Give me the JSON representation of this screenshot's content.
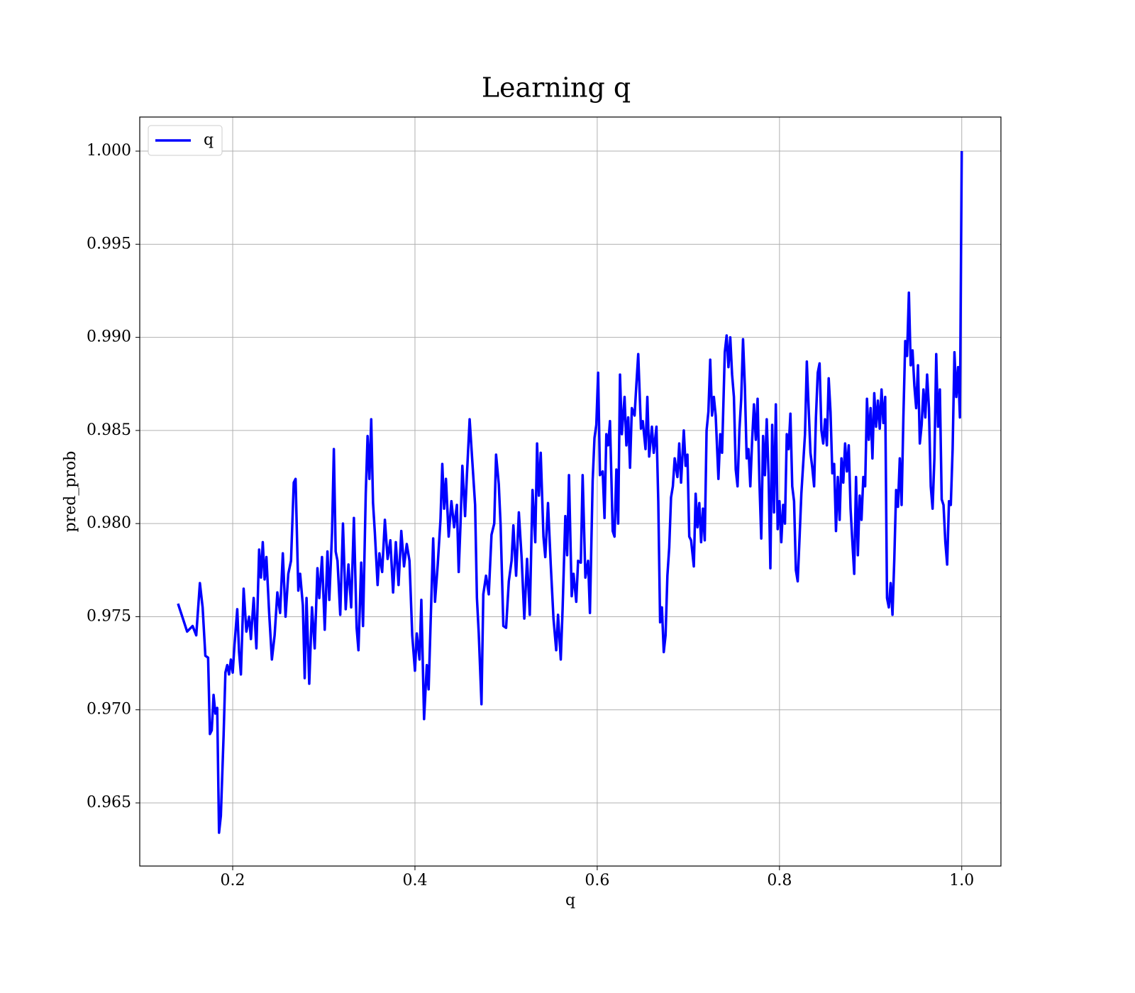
{
  "chart_data": {
    "type": "line",
    "title": "Learning q",
    "xlabel": "q",
    "ylabel": "pred_prob",
    "xlim": [
      0.098,
      1.043
    ],
    "ylim": [
      0.96161,
      1.00183
    ],
    "xticks": [
      0.2,
      0.4,
      0.6,
      0.8,
      {
        "value": 1.0,
        "label": "1.0"
      }
    ],
    "yticks": [
      0.965,
      {
        "value": 0.97,
        "label": "0.970"
      },
      0.975,
      {
        "value": 0.98,
        "label": "0.980"
      },
      0.985,
      {
        "value": 0.99,
        "label": "0.990"
      },
      0.995,
      {
        "value": 1.0,
        "label": "1.000"
      }
    ],
    "grid": true,
    "legend": "upper left",
    "x": [
      0.14,
      0.15,
      0.156,
      0.16,
      0.164,
      0.167,
      0.17,
      0.173,
      0.175,
      0.177,
      0.179,
      0.181,
      0.183,
      0.185,
      0.187,
      0.19,
      0.192,
      0.194,
      0.196,
      0.198,
      0.2,
      0.202,
      0.205,
      0.207,
      0.209,
      0.212,
      0.215,
      0.218,
      0.22,
      0.223,
      0.226,
      0.229,
      0.231,
      0.233,
      0.235,
      0.237,
      0.24,
      0.243,
      0.246,
      0.249,
      0.252,
      0.255,
      0.258,
      0.261,
      0.264,
      0.267,
      0.269,
      0.272,
      0.274,
      0.277,
      0.279,
      0.281,
      0.284,
      0.287,
      0.29,
      0.293,
      0.295,
      0.298,
      0.301,
      0.304,
      0.306,
      0.309,
      0.311,
      0.313,
      0.315,
      0.318,
      0.321,
      0.324,
      0.327,
      0.33,
      0.333,
      0.336,
      0.338,
      0.341,
      0.343,
      0.346,
      0.348,
      0.35,
      0.352,
      0.354,
      0.356,
      0.359,
      0.361,
      0.364,
      0.367,
      0.37,
      0.373,
      0.376,
      0.379,
      0.382,
      0.385,
      0.388,
      0.391,
      0.394,
      0.397,
      0.4,
      0.402,
      0.405,
      0.407,
      0.41,
      0.413,
      0.415,
      0.418,
      0.42,
      0.422,
      0.425,
      0.428,
      0.43,
      0.432,
      0.434,
      0.437,
      0.44,
      0.443,
      0.446,
      0.448,
      0.45,
      0.452,
      0.455,
      0.457,
      0.46,
      0.463,
      0.466,
      0.468,
      0.47,
      0.473,
      0.475,
      0.478,
      0.481,
      0.484,
      0.487,
      0.489,
      0.492,
      0.494,
      0.497,
      0.5,
      0.503,
      0.506,
      0.508,
      0.511,
      0.514,
      0.517,
      0.52,
      0.523,
      0.526,
      0.529,
      0.532,
      0.534,
      0.536,
      0.538,
      0.541,
      0.543,
      0.546,
      0.549,
      0.552,
      0.555,
      0.557,
      0.56,
      0.562,
      0.565,
      0.567,
      0.569,
      0.572,
      0.574,
      0.577,
      0.579,
      0.582,
      0.584,
      0.587,
      0.59,
      0.592,
      0.595,
      0.597,
      0.599,
      0.601,
      0.603,
      0.606,
      0.608,
      0.61,
      0.612,
      0.614,
      0.617,
      0.619,
      0.621,
      0.623,
      0.625,
      0.627,
      0.63,
      0.632,
      0.634,
      0.636,
      0.638,
      0.641,
      0.643,
      0.645,
      0.648,
      0.65,
      0.653,
      0.655,
      0.657,
      0.66,
      0.662,
      0.665,
      0.667,
      0.669,
      0.671,
      0.673,
      0.675,
      0.677,
      0.679,
      0.681,
      0.683,
      0.685,
      0.688,
      0.69,
      0.692,
      0.695,
      0.697,
      0.699,
      0.701,
      0.703,
      0.706,
      0.708,
      0.71,
      0.712,
      0.714,
      0.716,
      0.718,
      0.72,
      0.722,
      0.724,
      0.726,
      0.728,
      0.73,
      0.733,
      0.735,
      0.737,
      0.74,
      0.742,
      0.744,
      0.746,
      0.748,
      0.75,
      0.752,
      0.754,
      0.756,
      0.758,
      0.76,
      0.762,
      0.764,
      0.766,
      0.768,
      0.77,
      0.772,
      0.774,
      0.776,
      0.778,
      0.78,
      0.782,
      0.784,
      0.786,
      0.788,
      0.79,
      0.792,
      0.794,
      0.796,
      0.798,
      0.8,
      0.802,
      0.804,
      0.806,
      0.808,
      0.81,
      0.812,
      0.814,
      0.816,
      0.818,
      0.82,
      0.822,
      0.824,
      0.826,
      0.828,
      0.83,
      0.832,
      0.834,
      0.836,
      0.838,
      0.84,
      0.842,
      0.844,
      0.846,
      0.848,
      0.85,
      0.852,
      0.854,
      0.856,
      0.858,
      0.86,
      0.862,
      0.864,
      0.866,
      0.868,
      0.87,
      0.872,
      0.874,
      0.876,
      0.878,
      0.88,
      0.882,
      0.884,
      0.886,
      0.888,
      0.89,
      0.892,
      0.894,
      0.896,
      0.898,
      0.9,
      0.902,
      0.904,
      0.906,
      0.908,
      0.91,
      0.912,
      0.914,
      0.916,
      0.918,
      0.92,
      0.922,
      0.924,
      0.926,
      0.928,
      0.93,
      0.932,
      0.934,
      0.936,
      0.938,
      0.94,
      0.942,
      0.944,
      0.946,
      0.948,
      0.95,
      0.952,
      0.954,
      0.956,
      0.958,
      0.96,
      0.962,
      0.964,
      0.966,
      0.968,
      0.97,
      0.972,
      0.974,
      0.976,
      0.978,
      0.98,
      0.982,
      0.984,
      0.986,
      0.988,
      0.99,
      0.992,
      0.994,
      0.996,
      0.998,
      1.0
    ],
    "series": [
      {
        "name": "q",
        "color": "#0000ff",
        "values": [
          0.9757,
          0.9742,
          0.9745,
          0.974,
          0.9768,
          0.9755,
          0.9729,
          0.9728,
          0.9687,
          0.9689,
          0.9708,
          0.9698,
          0.9701,
          0.9634,
          0.9643,
          0.9686,
          0.972,
          0.9724,
          0.9719,
          0.9727,
          0.972,
          0.9735,
          0.9754,
          0.9731,
          0.9719,
          0.9765,
          0.9742,
          0.975,
          0.9738,
          0.976,
          0.9733,
          0.9786,
          0.9771,
          0.979,
          0.977,
          0.9782,
          0.9752,
          0.9727,
          0.974,
          0.9763,
          0.9752,
          0.9784,
          0.975,
          0.9773,
          0.978,
          0.9822,
          0.9824,
          0.9764,
          0.9773,
          0.9756,
          0.9717,
          0.976,
          0.9714,
          0.9755,
          0.9733,
          0.9776,
          0.976,
          0.9782,
          0.9743,
          0.9785,
          0.9759,
          0.9795,
          0.984,
          0.9785,
          0.978,
          0.9751,
          0.98,
          0.9754,
          0.9778,
          0.9755,
          0.9803,
          0.9744,
          0.9732,
          0.9779,
          0.9745,
          0.9816,
          0.9847,
          0.9824,
          0.9856,
          0.9811,
          0.9795,
          0.9767,
          0.9784,
          0.9774,
          0.9802,
          0.9781,
          0.9791,
          0.9763,
          0.979,
          0.9767,
          0.9796,
          0.9777,
          0.9789,
          0.978,
          0.974,
          0.9721,
          0.9741,
          0.9727,
          0.9759,
          0.9695,
          0.9724,
          0.9711,
          0.976,
          0.9792,
          0.9758,
          0.9778,
          0.9802,
          0.9832,
          0.9808,
          0.9824,
          0.9793,
          0.9812,
          0.9798,
          0.981,
          0.9774,
          0.98,
          0.9831,
          0.9804,
          0.9826,
          0.9856,
          0.9833,
          0.981,
          0.976,
          0.9741,
          0.9703,
          0.9762,
          0.9772,
          0.9762,
          0.9794,
          0.98,
          0.9837,
          0.9821,
          0.9799,
          0.9745,
          0.9744,
          0.9769,
          0.978,
          0.9799,
          0.9772,
          0.9806,
          0.9782,
          0.9749,
          0.9781,
          0.9751,
          0.9818,
          0.979,
          0.9843,
          0.9815,
          0.9838,
          0.9793,
          0.9782,
          0.9811,
          0.9778,
          0.9749,
          0.9732,
          0.9751,
          0.9727,
          0.9754,
          0.9804,
          0.9783,
          0.9826,
          0.9761,
          0.9773,
          0.9758,
          0.978,
          0.9779,
          0.9826,
          0.9771,
          0.978,
          0.9752,
          0.9823,
          0.9846,
          0.9853,
          0.9881,
          0.9826,
          0.9828,
          0.9803,
          0.9848,
          0.9842,
          0.9855,
          0.9796,
          0.9793,
          0.9829,
          0.98,
          0.988,
          0.9848,
          0.9868,
          0.9842,
          0.9857,
          0.983,
          0.9862,
          0.9858,
          0.9875,
          0.9891,
          0.9851,
          0.9855,
          0.984,
          0.9868,
          0.9836,
          0.9852,
          0.9838,
          0.9852,
          0.9812,
          0.9747,
          0.9755,
          0.9731,
          0.974,
          0.9772,
          0.9787,
          0.9814,
          0.982,
          0.9835,
          0.9825,
          0.9843,
          0.9822,
          0.985,
          0.9831,
          0.9837,
          0.9793,
          0.9791,
          0.9777,
          0.9816,
          0.9798,
          0.9811,
          0.979,
          0.9808,
          0.9791,
          0.985,
          0.986,
          0.9888,
          0.9858,
          0.9868,
          0.9858,
          0.9824,
          0.9848,
          0.9838,
          0.9892,
          0.9901,
          0.9884,
          0.99,
          0.988,
          0.9868,
          0.9829,
          0.982,
          0.985,
          0.9867,
          0.9899,
          0.9874,
          0.9835,
          0.984,
          0.982,
          0.9845,
          0.9864,
          0.9845,
          0.9867,
          0.9822,
          0.9792,
          0.9847,
          0.9826,
          0.9856,
          0.9827,
          0.9776,
          0.9853,
          0.9806,
          0.9864,
          0.9797,
          0.9812,
          0.979,
          0.981,
          0.98,
          0.9848,
          0.984,
          0.9859,
          0.982,
          0.9812,
          0.9775,
          0.9769,
          0.9792,
          0.9816,
          0.9832,
          0.9848,
          0.9887,
          0.9862,
          0.9838,
          0.983,
          0.982,
          0.9857,
          0.9881,
          0.9886,
          0.985,
          0.9843,
          0.9856,
          0.9842,
          0.9878,
          0.986,
          0.9827,
          0.9832,
          0.9796,
          0.9825,
          0.9802,
          0.9835,
          0.9822,
          0.9843,
          0.9828,
          0.9842,
          0.9808,
          0.979,
          0.9773,
          0.9825,
          0.9783,
          0.9815,
          0.9802,
          0.9825,
          0.982,
          0.9867,
          0.9845,
          0.9862,
          0.9835,
          0.987,
          0.9852,
          0.9866,
          0.9851,
          0.9872,
          0.9854,
          0.9868,
          0.976,
          0.9755,
          0.9768,
          0.9751,
          0.9781,
          0.9818,
          0.9809,
          0.9835,
          0.981,
          0.9858,
          0.9898,
          0.989,
          0.9924,
          0.9885,
          0.9893,
          0.9874,
          0.9862,
          0.9885,
          0.9843,
          0.9853,
          0.9872,
          0.9857,
          0.988,
          0.9862,
          0.982,
          0.9808,
          0.9835,
          0.9891,
          0.9852,
          0.9872,
          0.9813,
          0.981,
          0.979,
          0.9778,
          0.9812,
          0.981,
          0.984,
          0.9892,
          0.9868,
          0.9884,
          0.9857,
          1.0
        ]
      }
    ]
  }
}
